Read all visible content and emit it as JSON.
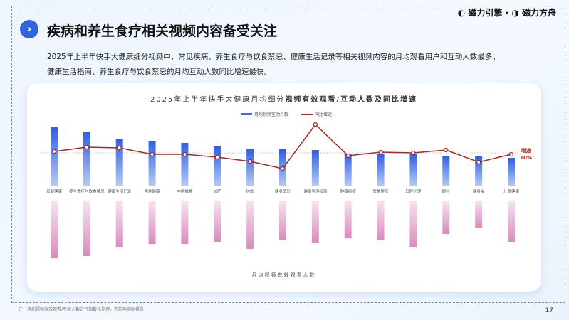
{
  "header": {
    "icon": "chevron-right-icon",
    "title": "疾病和养生食疗相关视频内容备受关注",
    "logo_1": "磁力引擎",
    "logo_sep": "·",
    "logo_2": "磁力方舟"
  },
  "description": [
    "2025年上半年快手大健康细分视频中，常见疾病、养生食疗与饮食禁忌、健康生活记录等相关视频内容的月均观看用户和互动人数最多；",
    "健康生活指南、养生食疗与饮食禁忌的月均互动人数同比增速最快。"
  ],
  "annotation": {
    "label": "增速",
    "value": "10%"
  },
  "footnote": "注：月均视频有效观看/互动人数进行指数化处理，不影响实际排名",
  "page_number": "17",
  "chart_data": {
    "type": "bar",
    "title_prefix": "2025年上半年快手大健康月均细分",
    "title_bold": "视频有效观看/互动人数及同比增速",
    "legend": [
      "月均视频互动人数",
      "同比增速"
    ],
    "xlabel": "月均视频有效观看人数",
    "categories": [
      "母婴健康",
      "养生食疗与饮食禁忌",
      "健康生活记录",
      "两性健康",
      "中医推拿",
      "减肥",
      "护肤",
      "健身塑形",
      "健康生活指南",
      "肿瘤癌症",
      "医美整形",
      "口腔护理",
      "眼科",
      "健身操",
      "儿童健康"
    ],
    "series": [
      {
        "name": "月均视频互动人数",
        "values": [
          83,
          77,
          66,
          64,
          61,
          56,
          52,
          52,
          51,
          46,
          46,
          46,
          43,
          42,
          40
        ]
      },
      {
        "name": "月均视频有效观看人数",
        "values": [
          81,
          78,
          66,
          61,
          61,
          58,
          68,
          55,
          60,
          53,
          55,
          66,
          47,
          38,
          58
        ]
      },
      {
        "name": "同比增速",
        "values": [
          11,
          14,
          13.5,
          9,
          9,
          7,
          4,
          -1,
          30,
          8,
          10.5,
          10,
          12,
          3.5,
          9
        ]
      }
    ],
    "reference_line": 10,
    "colors": {
      "bar_top": "#3b6ee8",
      "bar_bottom": "#d98bbd",
      "line": "#a8281e"
    }
  }
}
